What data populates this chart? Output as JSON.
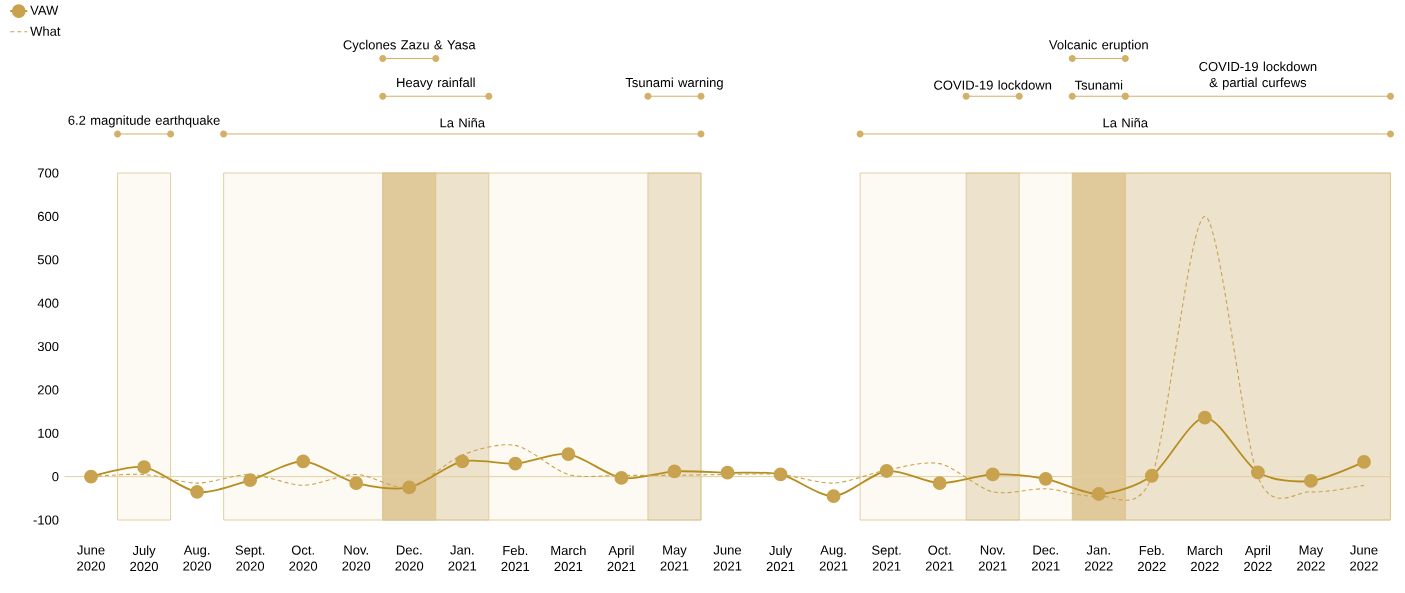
{
  "chart_data": {
    "type": "line",
    "categories": [
      "June 2020",
      "July 2020",
      "Aug. 2020",
      "Sept. 2020",
      "Oct. 2020",
      "Nov. 2020",
      "Dec. 2020",
      "Jan. 2021",
      "Feb. 2021",
      "March 2021",
      "April 2021",
      "May 2021",
      "June 2021",
      "July 2021",
      "Aug. 2021",
      "Sept. 2021",
      "Oct. 2021",
      "Nov. 2021",
      "Dec. 2021",
      "Jan. 2022",
      "Feb. 2022",
      "March 2022",
      "April 2022",
      "May 2022",
      "June 2022"
    ],
    "series": [
      {
        "name": "VAW",
        "color": "#b68d1f",
        "marker": "circle",
        "line_style": "solid",
        "values": [
          0,
          22,
          -35,
          -8,
          35,
          -15,
          -25,
          35,
          30,
          52,
          -3,
          12,
          9,
          5,
          -45,
          13,
          -15,
          5,
          -5,
          -40,
          2,
          136,
          10,
          -10,
          34
        ]
      },
      {
        "name": "What",
        "color": "#c9a24f",
        "marker": "none",
        "line_style": "dashed",
        "values": [
          0,
          5,
          -15,
          5,
          -20,
          5,
          -25,
          50,
          72,
          5,
          3,
          3,
          5,
          5,
          -15,
          15,
          30,
          -35,
          -28,
          -45,
          0,
          600,
          0,
          -35,
          -20
        ]
      }
    ],
    "ylim": [
      -100,
      700
    ],
    "yticks": [
      -100,
      0,
      100,
      200,
      300,
      400,
      500,
      600,
      700
    ],
    "ref_lines": [
      {
        "axis": "y",
        "value": 0,
        "color": "#e2cf9f"
      }
    ],
    "bands": [
      {
        "axis": "x",
        "from": "July 2020",
        "to": "July 2020",
        "color": "#fdfaf3"
      },
      {
        "axis": "x",
        "from": "Sept. 2020",
        "to": "May 2021",
        "color": "#fdfaf3"
      },
      {
        "axis": "x",
        "from": "Dec. 2020",
        "to": "Jan. 2021",
        "color": "#ede2cc"
      },
      {
        "axis": "x",
        "from": "Dec. 2020",
        "to": "Dec. 2020",
        "color": "#e0c99a"
      },
      {
        "axis": "x",
        "from": "May 2021",
        "to": "May 2021",
        "color": "#ede2cc"
      },
      {
        "axis": "x",
        "from": "Sept. 2021",
        "to": "June 2022",
        "color": "#fdfaf3"
      },
      {
        "axis": "x",
        "from": "Nov. 2021",
        "to": "Nov. 2021",
        "color": "#ede2cc"
      },
      {
        "axis": "x",
        "from": "Jan. 2022",
        "to": "Jan. 2022",
        "color": "#e0c99a"
      },
      {
        "axis": "x",
        "from": "Feb. 2022",
        "to": "June 2022",
        "color": "#ede2cc"
      }
    ],
    "annotations": [
      "6.2 magnitude earthquake",
      "La Niña",
      "Heavy rainfall",
      "Cyclones Zazu & Yasa",
      "Tsunami warning",
      "La Niña",
      "COVID-19 lockdown",
      "Tsunami",
      "COVID-19 lockdown & partial curfews",
      "Volcanic eruption"
    ],
    "legend": "top left",
    "grid": false
  }
}
